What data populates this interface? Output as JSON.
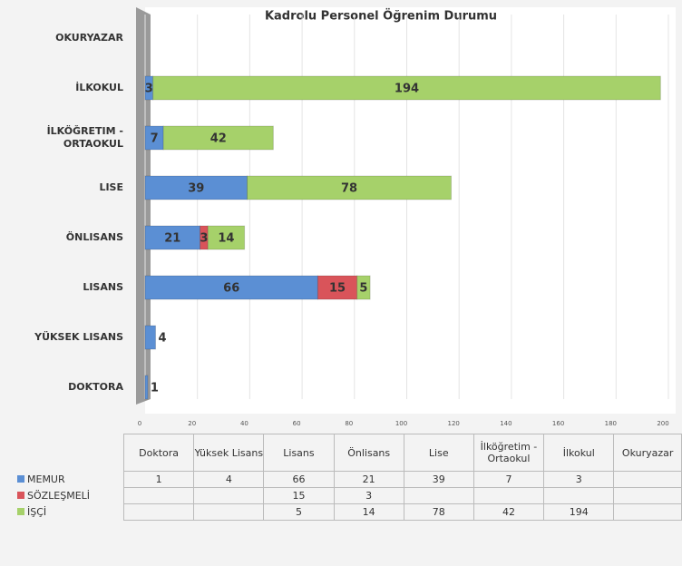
{
  "chart_data": {
    "type": "bar",
    "orientation": "horizontal",
    "stacked": true,
    "title": "Kadrolu Personel Öğrenim Durumu",
    "categories": [
      "Doktora",
      "Yüksek Lisans",
      "Lisans",
      "Önlisans",
      "Lise",
      "İlköğretim - Ortaokul",
      "İlkokul",
      "Okuryazar"
    ],
    "axis_labels": [
      "DOKTORA",
      "YÜKSEK LISANS",
      "LISANS",
      "ÖNLISANS",
      "LISE",
      "İLKÖĞRETIM - ORTAOKUL",
      "İLKOKUL",
      "OKURYAZAR"
    ],
    "series": [
      {
        "name": "MEMUR",
        "color": "#5b8fd4",
        "values": [
          1,
          4,
          66,
          21,
          39,
          7,
          3,
          null
        ]
      },
      {
        "name": "SÖZLEŞMELİ",
        "color": "#d9545a",
        "values": [
          null,
          null,
          15,
          3,
          null,
          null,
          null,
          null
        ]
      },
      {
        "name": "İŞÇİ",
        "color": "#a6d16a",
        "values": [
          null,
          null,
          5,
          14,
          78,
          42,
          194,
          null
        ]
      }
    ],
    "xlim": [
      0,
      200
    ],
    "xticks": [
      0,
      20,
      40,
      60,
      80,
      100,
      120,
      140,
      160,
      180,
      200
    ],
    "grid": true
  }
}
